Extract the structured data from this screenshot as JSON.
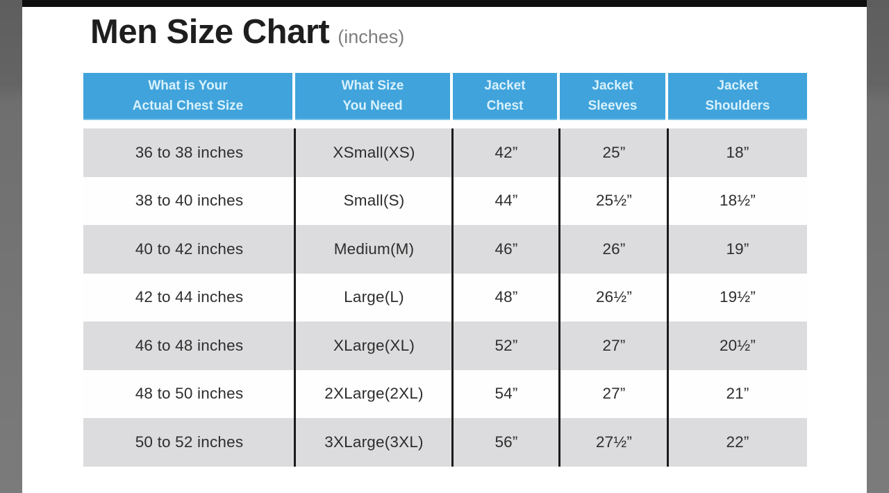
{
  "title": {
    "main": "Men Size Chart",
    "suffix": "(inches)"
  },
  "colors": {
    "header_blue": "#40a3db",
    "header_text": "#d9f1fc",
    "row_gray": "#dcdcde",
    "row_white": "#fefefe",
    "divider_black": "#1b1b1b",
    "frame_gray": "#6f6f6f",
    "top_strip_black": "#0f0f0f"
  },
  "chart_data": {
    "type": "table",
    "title": "Men Size Chart (inches)",
    "columns": [
      {
        "line1": "What is Your",
        "line2": "Actual Chest Size"
      },
      {
        "line1": "What Size",
        "line2": "You Need"
      },
      {
        "line1": "Jacket",
        "line2": "Chest"
      },
      {
        "line1": "Jacket",
        "line2": "Sleeves"
      },
      {
        "line1": "Jacket",
        "line2": "Shoulders"
      }
    ],
    "rows": [
      [
        "36 to 38 inches",
        "XSmall(XS)",
        "42”",
        "25”",
        "18”"
      ],
      [
        "38 to 40 inches",
        "Small(S)",
        "44”",
        "25½”",
        "18½”"
      ],
      [
        "40 to 42 inches",
        "Medium(M)",
        "46”",
        "26”",
        "19”"
      ],
      [
        "42 to 44 inches",
        "Large(L)",
        "48”",
        "26½”",
        "19½”"
      ],
      [
        "46 to 48 inches",
        "XLarge(XL)",
        "52”",
        "27”",
        "20½”"
      ],
      [
        "48 to 50 inches",
        "2XLarge(2XL)",
        "54”",
        "27”",
        "21”"
      ],
      [
        "50 to 52 inches",
        "3XLarge(3XL)",
        "56”",
        "27½”",
        "22”"
      ]
    ]
  }
}
